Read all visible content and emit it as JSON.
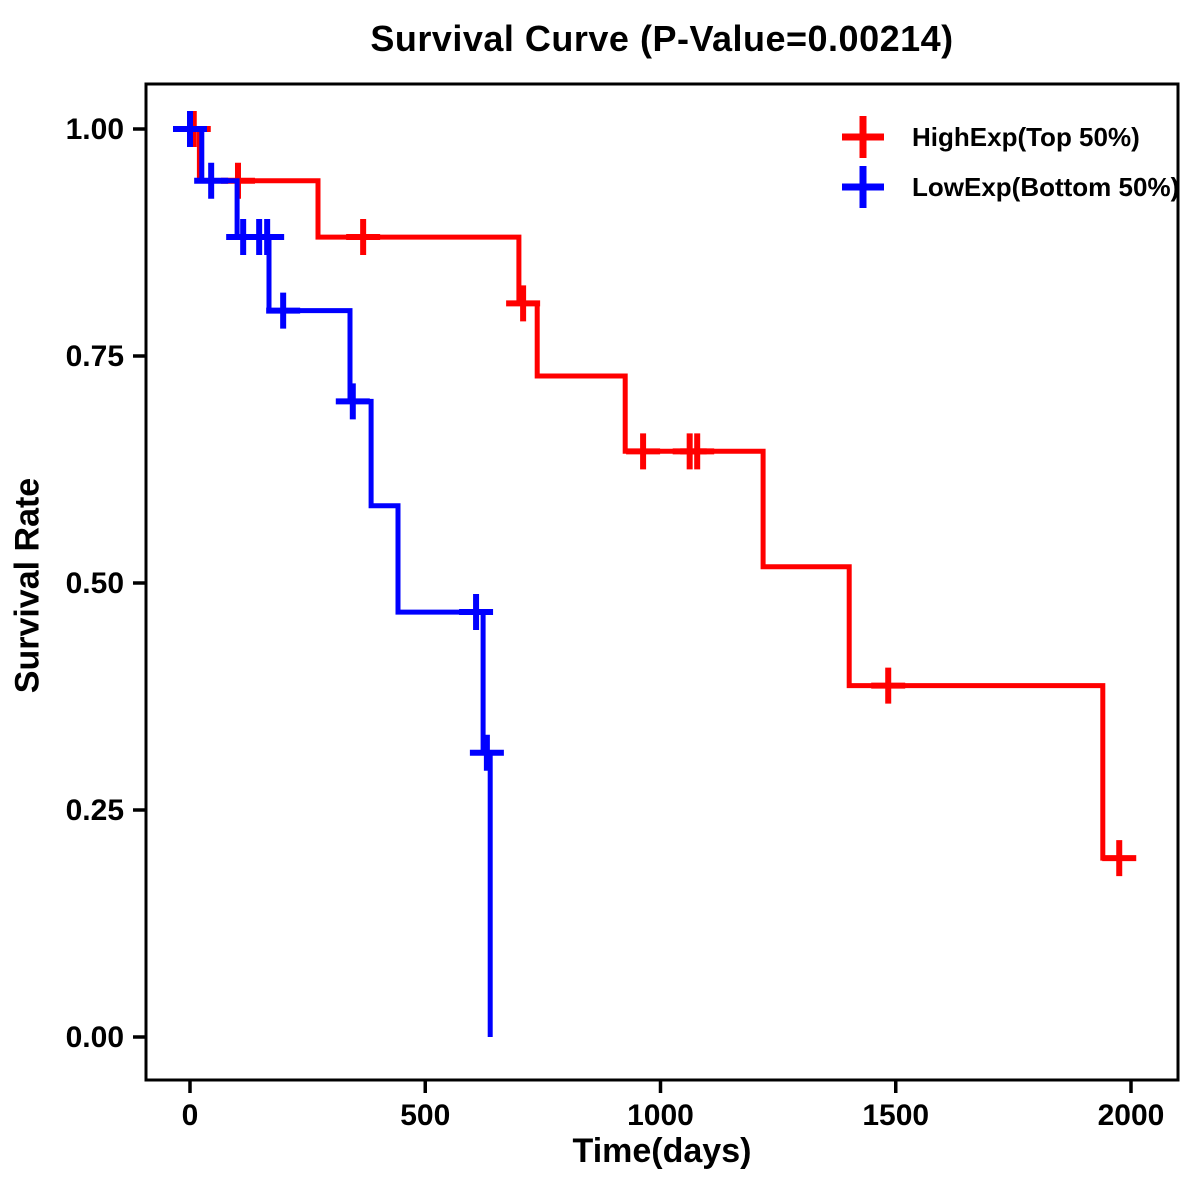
{
  "title": "Survival Curve (P-Value=0.00214)",
  "axes": {
    "x": {
      "label": "Time(days)",
      "ticks": [
        "0",
        "500",
        "1000",
        "1500",
        "2000"
      ],
      "tick_values": [
        0,
        500,
        1000,
        1500,
        2000
      ]
    },
    "y": {
      "label": "Survival Rate",
      "ticks": [
        "0.00",
        "0.25",
        "0.50",
        "0.75",
        "1.00"
      ],
      "tick_values": [
        0,
        0.25,
        0.5,
        0.75,
        1
      ]
    }
  },
  "legend": {
    "items": [
      {
        "label": "HighExp(Top 50%)",
        "color": "#ff0000"
      },
      {
        "label": "LowExp(Bottom 50%)",
        "color": "#0000ff"
      }
    ]
  },
  "colors": {
    "high": "#ff0000",
    "low": "#0000ff",
    "axis": "#000000",
    "background": "#ffffff"
  },
  "chart_data": {
    "type": "line",
    "subtype": "kaplan-meier-step-survival",
    "title": "Survival Curve (P-Value=0.00214)",
    "p_value": "0.00214",
    "xlabel": "Time(days)",
    "ylabel": "Survival Rate",
    "xlim": [
      0,
      2000
    ],
    "ylim": [
      0,
      1
    ],
    "grid": false,
    "legend_position": "top-right",
    "series": [
      {
        "name": "HighExp(Top 50%)",
        "color": "#ff0000",
        "steps": [
          [
            0,
            1.0
          ],
          [
            20,
            1.0
          ],
          [
            20,
            0.943
          ],
          [
            272,
            0.943
          ],
          [
            272,
            0.881
          ],
          [
            699,
            0.881
          ],
          [
            699,
            0.808
          ],
          [
            738,
            0.808
          ],
          [
            738,
            0.728
          ],
          [
            925,
            0.728
          ],
          [
            925,
            0.645
          ],
          [
            1218,
            0.645
          ],
          [
            1218,
            0.518
          ],
          [
            1401,
            0.518
          ],
          [
            1401,
            0.387
          ],
          [
            1940,
            0.387
          ],
          [
            1940,
            0.197
          ],
          [
            2000,
            0.197
          ]
        ],
        "censor_marks": [
          [
            8,
            1.0
          ],
          [
            102,
            0.943
          ],
          [
            368,
            0.881
          ],
          [
            708,
            0.808
          ],
          [
            963,
            0.645
          ],
          [
            1062,
            0.645
          ],
          [
            1078,
            0.645
          ],
          [
            1484,
            0.387
          ],
          [
            1975,
            0.197
          ]
        ]
      },
      {
        "name": "LowExp(Bottom 50%)",
        "color": "#0000ff",
        "steps": [
          [
            0,
            1.0
          ],
          [
            25,
            1.0
          ],
          [
            25,
            0.943
          ],
          [
            100,
            0.943
          ],
          [
            100,
            0.881
          ],
          [
            168,
            0.881
          ],
          [
            168,
            0.8
          ],
          [
            340,
            0.8
          ],
          [
            340,
            0.7
          ],
          [
            385,
            0.7
          ],
          [
            385,
            0.585
          ],
          [
            442,
            0.585
          ],
          [
            442,
            0.468
          ],
          [
            623,
            0.468
          ],
          [
            623,
            0.313
          ],
          [
            638,
            0.313
          ],
          [
            638,
            0.0
          ]
        ],
        "censor_marks": [
          [
            0,
            1.0
          ],
          [
            45,
            0.943
          ],
          [
            113,
            0.881
          ],
          [
            147,
            0.881
          ],
          [
            164,
            0.881
          ],
          [
            198,
            0.8
          ],
          [
            346,
            0.7
          ],
          [
            608,
            0.468
          ],
          [
            631,
            0.313
          ]
        ]
      }
    ]
  }
}
